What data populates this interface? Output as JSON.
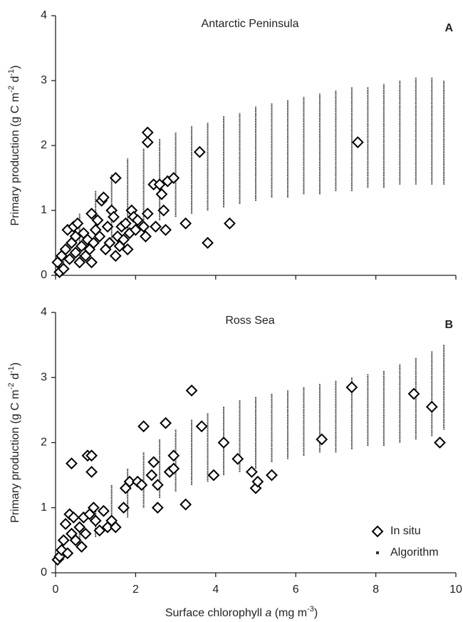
{
  "chart_data": [
    {
      "type": "scatter",
      "title": "Antarctic Peninsula",
      "panel_label": "A",
      "ylabel_parts": [
        "Primary production (g C m",
        "-2",
        " d",
        "-1",
        ")"
      ],
      "xlim": [
        0,
        10
      ],
      "xticks": [
        0,
        2,
        4,
        6,
        8,
        10
      ],
      "show_xtick_labels": false,
      "ylim": [
        0,
        4
      ],
      "yticks": [
        0,
        1,
        2,
        3,
        4
      ],
      "series": [
        {
          "marker": "diamond",
          "color": "#000000",
          "x": [
            0.05,
            0.1,
            0.15,
            0.2,
            0.25,
            0.3,
            0.35,
            0.4,
            0.45,
            0.5,
            0.5,
            0.55,
            0.6,
            0.65,
            0.7,
            0.75,
            0.8,
            0.85,
            0.9,
            0.9,
            0.95,
            1.0,
            1.05,
            1.1,
            1.15,
            1.2,
            1.25,
            1.3,
            1.35,
            1.4,
            1.45,
            1.5,
            1.55,
            1.6,
            1.65,
            1.7,
            1.75,
            1.8,
            1.85,
            1.9,
            1.95,
            2.0,
            2.05,
            2.2,
            2.25,
            2.3,
            2.3,
            2.3,
            2.45,
            2.5,
            2.6,
            2.65,
            2.7,
            2.75,
            2.8,
            2.95,
            3.25,
            3.6,
            3.8,
            4.35,
            7.55,
            1.5
          ],
          "values": [
            0.2,
            0.05,
            0.3,
            0.1,
            0.4,
            0.7,
            0.25,
            0.5,
            0.75,
            0.35,
            0.6,
            0.8,
            0.2,
            0.45,
            0.65,
            0.3,
            0.55,
            0.4,
            0.95,
            0.2,
            0.5,
            0.7,
            0.85,
            0.6,
            1.15,
            1.2,
            0.4,
            0.75,
            0.5,
            1.0,
            0.9,
            0.3,
            0.6,
            0.45,
            0.75,
            0.55,
            0.8,
            0.4,
            0.65,
            1.0,
            0.9,
            0.7,
            0.85,
            0.75,
            0.6,
            2.2,
            2.05,
            0.95,
            1.4,
            0.75,
            1.4,
            1.25,
            1.0,
            0.7,
            1.45,
            1.5,
            0.8,
            1.9,
            0.5,
            0.8,
            2.05,
            1.5
          ]
        },
        {
          "marker": "range",
          "color": "#333333",
          "x": [
            0.2,
            0.6,
            1.0,
            1.4,
            1.8,
            2.2,
            2.6,
            3.0,
            3.4,
            3.8,
            4.2,
            4.6,
            5.0,
            5.4,
            5.8,
            6.2,
            6.6,
            7.0,
            7.4,
            7.8,
            8.2,
            8.6,
            9.0,
            9.4,
            9.7
          ],
          "low": [
            0.05,
            0.25,
            0.45,
            0.55,
            0.7,
            0.8,
            0.85,
            0.9,
            0.95,
            1.0,
            1.05,
            1.1,
            1.15,
            1.2,
            1.2,
            1.25,
            1.25,
            1.3,
            1.3,
            1.35,
            1.35,
            1.4,
            1.4,
            1.4,
            1.4
          ],
          "high": [
            0.45,
            0.95,
            1.3,
            1.55,
            1.8,
            1.95,
            2.1,
            2.2,
            2.3,
            2.35,
            2.45,
            2.5,
            2.6,
            2.65,
            2.7,
            2.75,
            2.8,
            2.85,
            2.9,
            2.9,
            2.95,
            3.0,
            3.05,
            3.05,
            3.0
          ]
        }
      ]
    },
    {
      "type": "scatter",
      "title": "Ross Sea",
      "panel_label": "B",
      "ylabel_parts": [
        "Primary production (g C m",
        "-2",
        " d",
        "-1",
        ")"
      ],
      "xlabel_parts": [
        "Surface chlorophyll ",
        "a",
        " (mg m",
        "-3",
        ")"
      ],
      "xlim": [
        0,
        10
      ],
      "xticks": [
        0,
        2,
        4,
        6,
        8,
        10
      ],
      "show_xtick_labels": true,
      "ylim": [
        0,
        4
      ],
      "yticks": [
        0,
        1,
        2,
        3,
        4
      ],
      "legend": "lower right",
      "series": [
        {
          "name": "In situ",
          "marker": "diamond",
          "color": "#000000",
          "x": [
            0.05,
            0.1,
            0.15,
            0.2,
            0.25,
            0.3,
            0.35,
            0.4,
            0.4,
            0.45,
            0.5,
            0.6,
            0.65,
            0.7,
            0.75,
            0.8,
            0.85,
            0.9,
            0.9,
            0.95,
            1.0,
            1.1,
            1.2,
            1.3,
            1.4,
            1.5,
            1.7,
            1.75,
            1.85,
            2.05,
            2.15,
            2.2,
            2.4,
            2.45,
            2.55,
            2.55,
            2.75,
            2.85,
            2.95,
            2.95,
            3.25,
            3.4,
            3.65,
            3.95,
            4.2,
            4.55,
            4.9,
            5.0,
            5.05,
            5.4,
            6.65,
            7.4,
            8.95,
            9.4,
            9.6
          ],
          "values": [
            0.2,
            0.25,
            0.35,
            0.5,
            0.75,
            0.3,
            0.9,
            0.6,
            1.68,
            0.85,
            0.5,
            0.7,
            0.4,
            0.85,
            0.6,
            1.8,
            0.9,
            1.8,
            1.55,
            1.0,
            0.8,
            0.65,
            0.95,
            0.7,
            0.8,
            0.7,
            1.0,
            1.3,
            1.4,
            1.4,
            1.35,
            2.25,
            1.5,
            1.7,
            1.35,
            1.0,
            2.3,
            1.55,
            1.6,
            1.8,
            1.05,
            2.8,
            2.25,
            1.5,
            2.0,
            1.75,
            1.55,
            1.3,
            1.4,
            1.5,
            2.05,
            2.85,
            2.75,
            2.55,
            2.0
          ]
        },
        {
          "name": "Algorithm",
          "marker": "range",
          "color": "#333333",
          "x": [
            0.2,
            0.6,
            1.0,
            1.4,
            1.8,
            2.2,
            2.6,
            3.0,
            3.4,
            3.8,
            4.2,
            4.6,
            5.0,
            5.4,
            5.8,
            6.2,
            6.6,
            7.0,
            7.4,
            7.8,
            8.2,
            8.6,
            9.0,
            9.4,
            9.7
          ],
          "low": [
            0.2,
            0.4,
            0.55,
            0.7,
            0.85,
            1.0,
            1.15,
            1.25,
            1.35,
            1.4,
            1.5,
            1.55,
            1.6,
            1.7,
            1.75,
            1.8,
            1.85,
            1.85,
            1.9,
            1.95,
            1.95,
            2.0,
            2.05,
            2.1,
            2.2
          ],
          "high": [
            0.35,
            0.75,
            1.05,
            1.35,
            1.6,
            1.85,
            2.05,
            2.2,
            2.35,
            2.45,
            2.55,
            2.65,
            2.7,
            2.75,
            2.8,
            2.85,
            2.9,
            2.95,
            3.0,
            3.05,
            3.1,
            3.2,
            3.3,
            3.4,
            3.5
          ]
        }
      ]
    }
  ]
}
